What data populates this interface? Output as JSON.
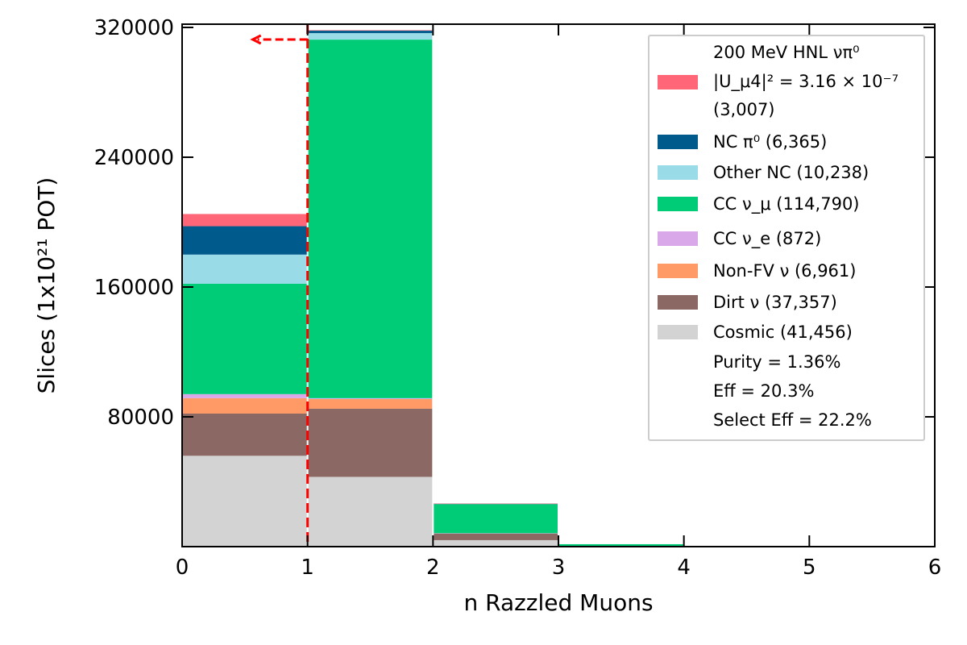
{
  "chart_data": {
    "type": "bar",
    "stacked": true,
    "xlabel": "n Razzled Muons",
    "ylabel": "Slices (1x10²¹ POT)",
    "xlim": [
      0,
      6
    ],
    "ylim": [
      0,
      322000
    ],
    "x_ticks": [
      "0",
      "1",
      "2",
      "3",
      "4",
      "5",
      "6"
    ],
    "y_ticks": [
      {
        "value": 80000,
        "label": "80000"
      },
      {
        "value": 160000,
        "label": "160000"
      },
      {
        "value": 240000,
        "label": "240000"
      },
      {
        "value": 320000,
        "label": "320000"
      }
    ],
    "bin_edges": [
      0,
      1,
      2,
      3,
      4,
      5,
      6
    ],
    "cut_value": 1,
    "cut_direction": "left",
    "series": [
      {
        "key": "cosmic",
        "name": "Cosmic (41,456)",
        "color": "#d3d3d3",
        "values": [
          56000,
          43000,
          4000,
          0,
          0,
          0
        ]
      },
      {
        "key": "dirt",
        "name": "Dirt ν (37,357)",
        "color": "#8b6864",
        "values": [
          26000,
          42000,
          4000,
          0,
          0,
          0
        ]
      },
      {
        "key": "nonfv",
        "name": "Non-FV ν (6,961)",
        "color": "#ff9966",
        "values": [
          9500,
          6000,
          200,
          0,
          0,
          0
        ]
      },
      {
        "key": "ccnue",
        "name": "CC ν_e (872)",
        "color": "#d8a8e8",
        "values": [
          2500,
          500,
          50,
          0,
          0,
          0
        ]
      },
      {
        "key": "ccnumu",
        "name": "CC ν_μ (114,790)",
        "color": "#00cc77",
        "values": [
          68000,
          221000,
          18000,
          1500,
          0,
          0
        ]
      },
      {
        "key": "othernc",
        "name": "Other NC (10,238)",
        "color": "#99dbe6",
        "values": [
          18000,
          4000,
          200,
          0,
          0,
          0
        ]
      },
      {
        "key": "ncpi0",
        "name": "NC π⁰ (6,365)",
        "color": "#005a8c",
        "values": [
          17500,
          1500,
          50,
          0,
          0,
          0
        ]
      },
      {
        "key": "hnl",
        "name": "200 MeV HNL νπ⁰",
        "color": "#ff6677",
        "values": [
          7500,
          300,
          20,
          0,
          0,
          0
        ]
      }
    ],
    "legend": {
      "placement": "top-right",
      "hnl_lines": [
        "200 MeV HNL νπ⁰",
        "|U_μ4|² = 3.16 × 10⁻⁷",
        " (3,007)"
      ],
      "entries": [
        {
          "series": "ncpi0",
          "label": "NC π⁰ (6,365)"
        },
        {
          "series": "othernc",
          "label": "Other NC (10,238)"
        },
        {
          "series": "ccnumu",
          "label": "CC ν_μ (114,790)"
        },
        {
          "series": "ccnue",
          "label": "CC ν_e (872)"
        },
        {
          "series": "nonfv",
          "label": "Non-FV ν (6,961)"
        },
        {
          "series": "dirt",
          "label": "Dirt ν (37,357)"
        },
        {
          "series": "cosmic",
          "label": "Cosmic (41,456)"
        }
      ],
      "stats": [
        "Purity = 1.36%",
        "Eff = 20.3%",
        "Select Eff = 22.2%"
      ]
    }
  }
}
